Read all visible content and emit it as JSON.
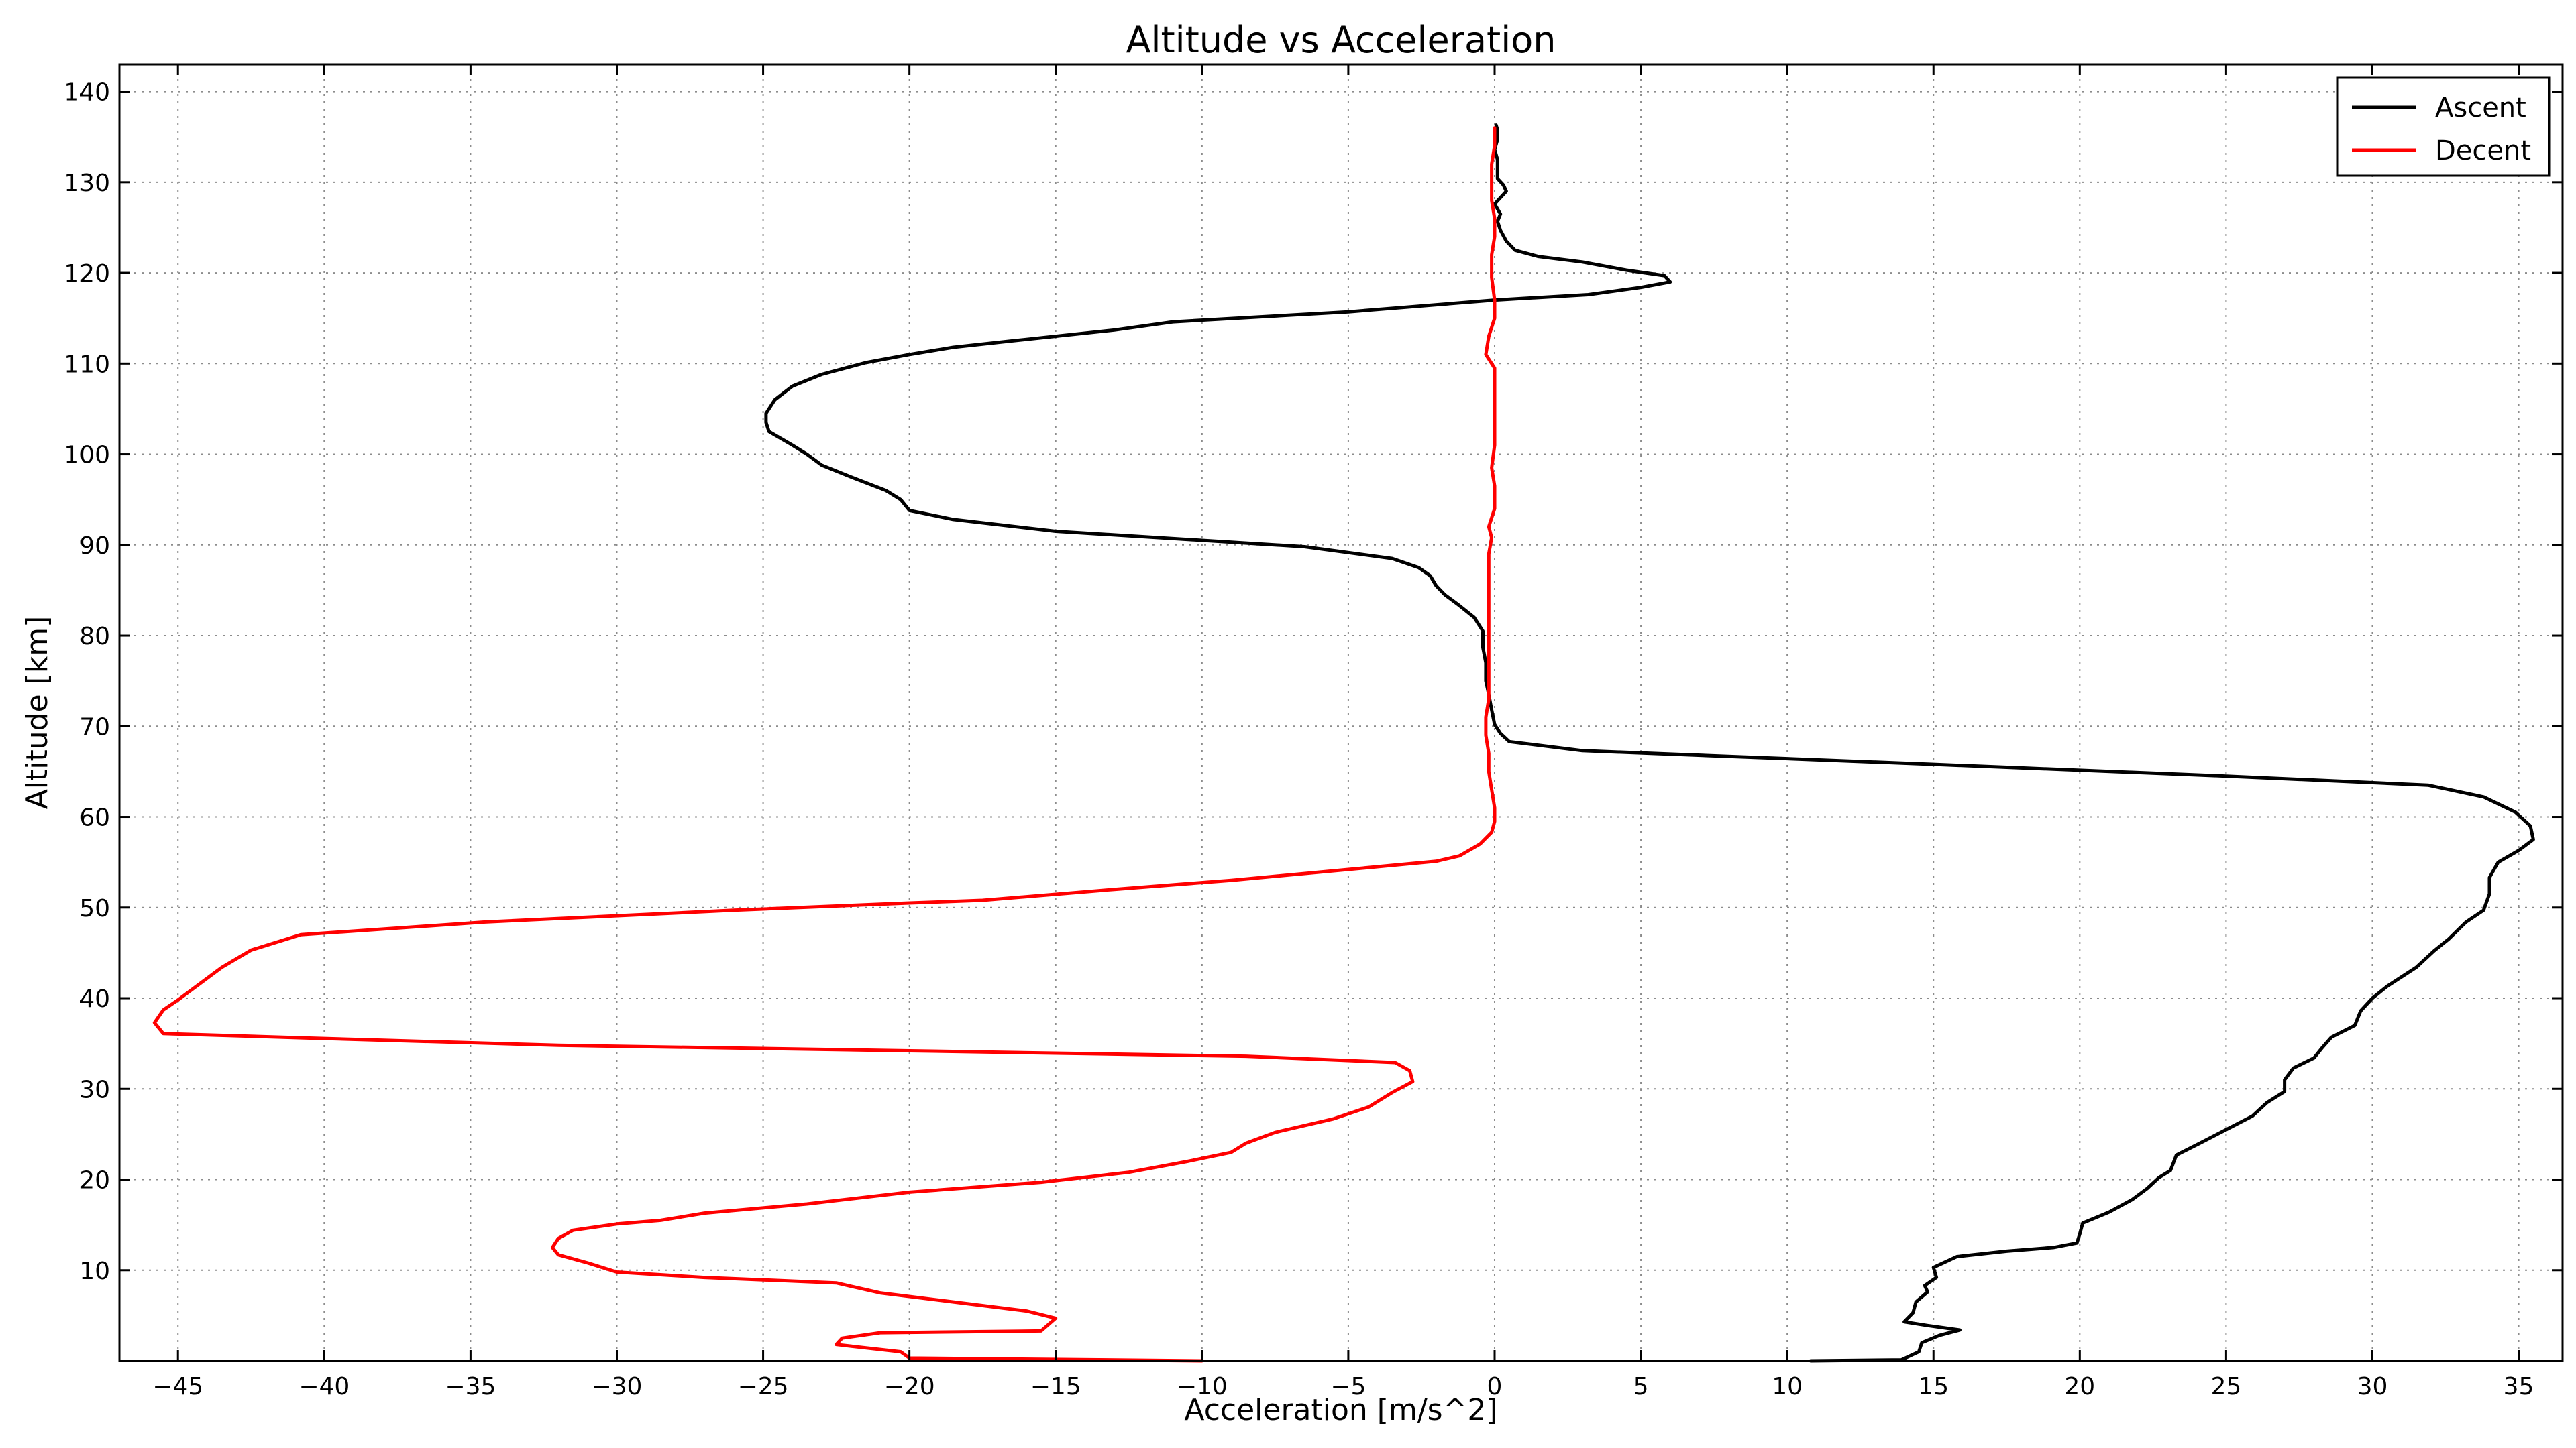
{
  "chart_data": {
    "type": "line",
    "title": "Altitude vs Acceleration",
    "xlabel": "Acceleration [m/s^2]",
    "ylabel": "Altitude [km]",
    "xlim": [
      -47,
      36.5
    ],
    "ylim": [
      0,
      143
    ],
    "xticks": [
      -45,
      -40,
      -35,
      -30,
      -25,
      -20,
      -15,
      -10,
      -5,
      0,
      5,
      10,
      15,
      20,
      25,
      30,
      35
    ],
    "xtick_labels": [
      "−45",
      "−40",
      "−35",
      "−30",
      "−25",
      "−20",
      "−15",
      "−10",
      "−5",
      "0",
      "5",
      "10",
      "15",
      "20",
      "25",
      "30",
      "35"
    ],
    "yticks": [
      10,
      20,
      30,
      40,
      50,
      60,
      70,
      80,
      90,
      100,
      110,
      120,
      130,
      140
    ],
    "ytick_labels": [
      "10",
      "20",
      "30",
      "40",
      "50",
      "60",
      "70",
      "80",
      "90",
      "100",
      "110",
      "120",
      "130",
      "140"
    ],
    "grid": true,
    "legend_position": "top-right",
    "series": [
      {
        "name": "Ascent",
        "color": "#000000",
        "points": [
          [
            10.8,
            0.0
          ],
          [
            13.9,
            0.1
          ],
          [
            14.5,
            1.0
          ],
          [
            14.6,
            2.0
          ],
          [
            15.2,
            2.8
          ],
          [
            15.9,
            3.4
          ],
          [
            14.8,
            3.9
          ],
          [
            14.0,
            4.3
          ],
          [
            14.3,
            5.3
          ],
          [
            14.4,
            6.5
          ],
          [
            14.8,
            7.6
          ],
          [
            14.7,
            8.3
          ],
          [
            15.1,
            9.2
          ],
          [
            15.0,
            10.3
          ],
          [
            15.8,
            11.5
          ],
          [
            17.5,
            12.1
          ],
          [
            19.1,
            12.5
          ],
          [
            19.9,
            13.0
          ],
          [
            20.0,
            14.0
          ],
          [
            20.1,
            15.2
          ],
          [
            21.0,
            16.4
          ],
          [
            21.8,
            17.8
          ],
          [
            22.3,
            19.0
          ],
          [
            22.7,
            20.2
          ],
          [
            23.1,
            21.0
          ],
          [
            23.3,
            22.7
          ],
          [
            24.1,
            24.0
          ],
          [
            25.0,
            25.5
          ],
          [
            25.9,
            27.0
          ],
          [
            26.4,
            28.5
          ],
          [
            27.0,
            29.7
          ],
          [
            27.0,
            31.0
          ],
          [
            27.3,
            32.3
          ],
          [
            28.0,
            33.4
          ],
          [
            28.3,
            34.6
          ],
          [
            28.6,
            35.7
          ],
          [
            29.4,
            37.0
          ],
          [
            29.6,
            38.6
          ],
          [
            30.0,
            40.0
          ],
          [
            30.5,
            41.3
          ],
          [
            31.5,
            43.4
          ],
          [
            32.1,
            45.2
          ],
          [
            32.6,
            46.5
          ],
          [
            33.2,
            48.4
          ],
          [
            33.8,
            49.7
          ],
          [
            34.0,
            51.5
          ],
          [
            34.0,
            53.3
          ],
          [
            34.3,
            55.0
          ],
          [
            35.0,
            56.3
          ],
          [
            35.5,
            57.5
          ],
          [
            35.4,
            59.0
          ],
          [
            34.9,
            60.5
          ],
          [
            33.8,
            62.2
          ],
          [
            31.9,
            63.5
          ],
          [
            25.0,
            64.5
          ],
          [
            15.0,
            65.8
          ],
          [
            3.0,
            67.3
          ],
          [
            0.5,
            68.3
          ],
          [
            0.2,
            69.2
          ],
          [
            0.0,
            70.2
          ],
          [
            -0.1,
            71.8
          ],
          [
            -0.2,
            73.5
          ],
          [
            -0.3,
            75.0
          ],
          [
            -0.3,
            77.0
          ],
          [
            -0.4,
            78.7
          ],
          [
            -0.4,
            80.5
          ],
          [
            -0.7,
            82.0
          ],
          [
            -1.2,
            83.3
          ],
          [
            -1.7,
            84.5
          ],
          [
            -2.0,
            85.5
          ],
          [
            -2.2,
            86.6
          ],
          [
            -2.6,
            87.5
          ],
          [
            -3.5,
            88.5
          ],
          [
            -6.5,
            89.8
          ],
          [
            -10.0,
            90.5
          ],
          [
            -15.0,
            91.5
          ],
          [
            -18.5,
            92.8
          ],
          [
            -20.0,
            93.8
          ],
          [
            -20.3,
            95.0
          ],
          [
            -20.8,
            96.0
          ],
          [
            -22.0,
            97.5
          ],
          [
            -23.0,
            98.8
          ],
          [
            -23.5,
            100.0
          ],
          [
            -24.0,
            101.0
          ],
          [
            -24.8,
            102.5
          ],
          [
            -24.9,
            103.5
          ],
          [
            -24.9,
            104.5
          ],
          [
            -24.6,
            106.0
          ],
          [
            -24.0,
            107.5
          ],
          [
            -23.0,
            108.8
          ],
          [
            -21.5,
            110.1
          ],
          [
            -20.0,
            111.0
          ],
          [
            -18.5,
            111.8
          ],
          [
            -16.5,
            112.5
          ],
          [
            -13.0,
            113.7
          ],
          [
            -11.0,
            114.6
          ],
          [
            -5.0,
            115.7
          ],
          [
            0.0,
            117.0
          ],
          [
            3.2,
            117.6
          ],
          [
            5.0,
            118.4
          ],
          [
            6.0,
            119.0
          ],
          [
            5.8,
            119.7
          ],
          [
            4.5,
            120.3
          ],
          [
            3.0,
            121.2
          ],
          [
            1.5,
            121.8
          ],
          [
            0.7,
            122.5
          ],
          [
            0.4,
            123.5
          ],
          [
            0.2,
            124.7
          ],
          [
            0.1,
            125.7
          ],
          [
            0.2,
            126.5
          ],
          [
            0.0,
            127.6
          ],
          [
            0.2,
            128.3
          ],
          [
            0.4,
            129.0
          ],
          [
            0.3,
            129.7
          ],
          [
            0.1,
            130.4
          ],
          [
            0.1,
            131.5
          ],
          [
            0.1,
            132.5
          ],
          [
            0.0,
            133.6
          ],
          [
            0.1,
            134.7
          ],
          [
            0.1,
            135.8
          ],
          [
            0.05,
            136.3
          ]
        ]
      },
      {
        "name": "Decent",
        "color": "#ff0000",
        "points": [
          [
            -10.0,
            0.0
          ],
          [
            -20.0,
            0.3
          ],
          [
            -20.3,
            1.0
          ],
          [
            -22.5,
            1.8
          ],
          [
            -22.3,
            2.5
          ],
          [
            -21.0,
            3.1
          ],
          [
            -15.5,
            3.3
          ],
          [
            -15.0,
            4.7
          ],
          [
            -16.0,
            5.5
          ],
          [
            -18.5,
            6.5
          ],
          [
            -21.0,
            7.5
          ],
          [
            -22.5,
            8.6
          ],
          [
            -27.0,
            9.2
          ],
          [
            -30.0,
            9.8
          ],
          [
            -31.0,
            10.8
          ],
          [
            -32.0,
            11.7
          ],
          [
            -32.2,
            12.5
          ],
          [
            -32.0,
            13.5
          ],
          [
            -31.5,
            14.4
          ],
          [
            -30.0,
            15.1
          ],
          [
            -28.5,
            15.5
          ],
          [
            -27.0,
            16.3
          ],
          [
            -23.5,
            17.3
          ],
          [
            -20.0,
            18.6
          ],
          [
            -15.5,
            19.7
          ],
          [
            -12.5,
            20.8
          ],
          [
            -10.5,
            22.0
          ],
          [
            -9.0,
            23.0
          ],
          [
            -8.5,
            24.0
          ],
          [
            -7.5,
            25.2
          ],
          [
            -5.5,
            26.7
          ],
          [
            -4.3,
            28.0
          ],
          [
            -3.5,
            29.6
          ],
          [
            -2.8,
            30.8
          ],
          [
            -2.9,
            32.0
          ],
          [
            -3.4,
            32.9
          ],
          [
            -8.5,
            33.6
          ],
          [
            -20.0,
            34.2
          ],
          [
            -32.0,
            34.8
          ],
          [
            -40.5,
            35.6
          ],
          [
            -45.5,
            36.1
          ],
          [
            -45.8,
            37.3
          ],
          [
            -45.5,
            38.7
          ],
          [
            -45.0,
            39.8
          ],
          [
            -44.5,
            41.0
          ],
          [
            -43.5,
            43.4
          ],
          [
            -42.5,
            45.3
          ],
          [
            -40.8,
            47.0
          ],
          [
            -34.5,
            48.4
          ],
          [
            -26.0,
            49.7
          ],
          [
            -20.0,
            50.5
          ],
          [
            -17.5,
            50.8
          ],
          [
            -13.0,
            52.0
          ],
          [
            -9.0,
            53.0
          ],
          [
            -5.0,
            54.2
          ],
          [
            -2.0,
            55.1
          ],
          [
            -1.2,
            55.7
          ],
          [
            -0.5,
            57.0
          ],
          [
            -0.1,
            58.3
          ],
          [
            0.0,
            59.5
          ],
          [
            0.0,
            61.0
          ],
          [
            -0.1,
            63.0
          ],
          [
            -0.2,
            65.0
          ],
          [
            -0.2,
            67.0
          ],
          [
            -0.3,
            69.0
          ],
          [
            -0.3,
            71.0
          ],
          [
            -0.2,
            73.0
          ],
          [
            -0.2,
            75.0
          ],
          [
            -0.2,
            77.0
          ],
          [
            -0.2,
            80.0
          ],
          [
            -0.2,
            83.0
          ],
          [
            -0.2,
            86.0
          ],
          [
            -0.2,
            89.0
          ],
          [
            -0.1,
            90.8
          ],
          [
            -0.2,
            92.0
          ],
          [
            0.0,
            94.0
          ],
          [
            0.0,
            96.5
          ],
          [
            -0.1,
            98.5
          ],
          [
            0.0,
            101.0
          ],
          [
            0.0,
            104.0
          ],
          [
            0.0,
            107.0
          ],
          [
            0.0,
            109.5
          ],
          [
            -0.3,
            111.0
          ],
          [
            -0.2,
            113.0
          ],
          [
            0.0,
            115.0
          ],
          [
            0.0,
            117.0
          ],
          [
            -0.1,
            119.5
          ],
          [
            -0.1,
            122.0
          ],
          [
            0.0,
            124.0
          ],
          [
            0.0,
            126.0
          ],
          [
            -0.1,
            128.0
          ],
          [
            -0.1,
            130.0
          ],
          [
            -0.1,
            132.0
          ],
          [
            0.0,
            134.0
          ],
          [
            0.0,
            136.0
          ]
        ]
      }
    ]
  }
}
